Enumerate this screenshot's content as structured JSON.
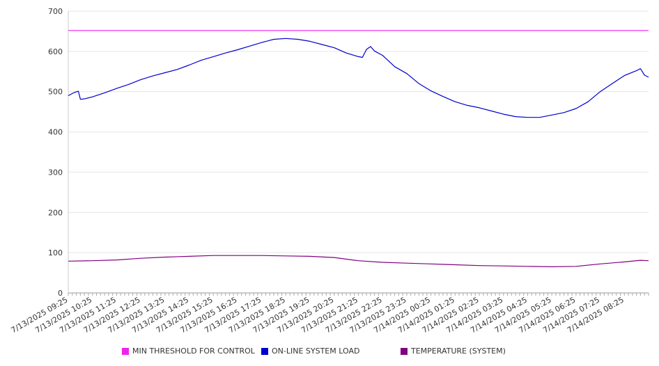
{
  "chart_data": {
    "type": "line",
    "title": "",
    "xlabel": "",
    "ylabel": "",
    "ylim": [
      0,
      700
    ],
    "y_ticks": [
      0,
      100,
      200,
      300,
      400,
      500,
      600,
      700
    ],
    "grid": "horizontal",
    "legend_position": "bottom",
    "x_tick_labels": [
      "7/13/2025 09:25",
      "7/13/2025 10:25",
      "7/13/2025 11:25",
      "7/13/2025 12:25",
      "7/13/2025 13:25",
      "7/13/2025 14:25",
      "7/13/2025 15:25",
      "7/13/2025 16:25",
      "7/13/2025 17:25",
      "7/13/2025 18:25",
      "7/13/2025 19:25",
      "7/13/2025 20:25",
      "7/13/2025 21:25",
      "7/13/2025 22:25",
      "7/13/2025 23:25",
      "7/14/2025 00:25",
      "7/14/2025 01:25",
      "7/14/2025 02:25",
      "7/14/2025 03:25",
      "7/14/2025 04:25",
      "7/14/2025 05:25",
      "7/14/2025 06:25",
      "7/14/2025 07:25",
      "7/14/2025 08:25"
    ],
    "x_range": [
      "7/13/2025 09:25",
      "7/14/2025 09:25"
    ],
    "series": [
      {
        "name": "MIN THRESHOLD FOR CONTROL",
        "color": "#ee22ee",
        "points": [
          [
            "7/13/2025 09:25",
            652
          ],
          [
            "7/14/2025 09:25",
            652
          ]
        ]
      },
      {
        "name": "ON-LINE SYSTEM LOAD",
        "color": "#0000cc",
        "points": [
          [
            "7/13/2025 09:25",
            490
          ],
          [
            "7/13/2025 09:40",
            498
          ],
          [
            "7/13/2025 09:50",
            501
          ],
          [
            "7/13/2025 09:55",
            481
          ],
          [
            "7/13/2025 10:05",
            482
          ],
          [
            "7/13/2025 10:25",
            487
          ],
          [
            "7/13/2025 10:55",
            497
          ],
          [
            "7/13/2025 11:25",
            508
          ],
          [
            "7/13/2025 11:55",
            518
          ],
          [
            "7/13/2025 12:25",
            530
          ],
          [
            "7/13/2025 12:55",
            539
          ],
          [
            "7/13/2025 13:25",
            547
          ],
          [
            "7/13/2025 13:55",
            555
          ],
          [
            "7/13/2025 14:25",
            566
          ],
          [
            "7/13/2025 14:55",
            578
          ],
          [
            "7/13/2025 15:25",
            587
          ],
          [
            "7/13/2025 15:55",
            596
          ],
          [
            "7/13/2025 16:25",
            604
          ],
          [
            "7/13/2025 16:55",
            613
          ],
          [
            "7/13/2025 17:25",
            622
          ],
          [
            "7/13/2025 17:55",
            630
          ],
          [
            "7/13/2025 18:25",
            632
          ],
          [
            "7/13/2025 18:55",
            630
          ],
          [
            "7/13/2025 19:25",
            625
          ],
          [
            "7/13/2025 19:55",
            617
          ],
          [
            "7/13/2025 20:25",
            609
          ],
          [
            "7/13/2025 20:55",
            596
          ],
          [
            "7/13/2025 21:25",
            587
          ],
          [
            "7/13/2025 21:35",
            585
          ],
          [
            "7/13/2025 21:45",
            605
          ],
          [
            "7/13/2025 21:55",
            612
          ],
          [
            "7/13/2025 22:05",
            601
          ],
          [
            "7/13/2025 22:25",
            590
          ],
          [
            "7/13/2025 22:55",
            562
          ],
          [
            "7/13/2025 23:25",
            545
          ],
          [
            "7/13/2025 23:55",
            520
          ],
          [
            "7/14/2025 00:25",
            502
          ],
          [
            "7/14/2025 00:55",
            488
          ],
          [
            "7/14/2025 01:25",
            475
          ],
          [
            "7/14/2025 01:55",
            466
          ],
          [
            "7/14/2025 02:25",
            460
          ],
          [
            "7/14/2025 02:55",
            452
          ],
          [
            "7/14/2025 03:25",
            444
          ],
          [
            "7/14/2025 03:55",
            438
          ],
          [
            "7/14/2025 04:25",
            436
          ],
          [
            "7/14/2025 04:55",
            436
          ],
          [
            "7/14/2025 05:25",
            442
          ],
          [
            "7/14/2025 05:55",
            448
          ],
          [
            "7/14/2025 06:25",
            458
          ],
          [
            "7/14/2025 06:55",
            475
          ],
          [
            "7/14/2025 07:25",
            500
          ],
          [
            "7/14/2025 07:55",
            520
          ],
          [
            "7/14/2025 08:25",
            540
          ],
          [
            "7/14/2025 08:55",
            552
          ],
          [
            "7/14/2025 09:05",
            557
          ],
          [
            "7/14/2025 09:15",
            541
          ],
          [
            "7/14/2025 09:25",
            536
          ]
        ]
      },
      {
        "name": "TEMPERATURE (SYSTEM)",
        "color": "#800080",
        "points": [
          [
            "7/13/2025 09:25",
            79
          ],
          [
            "7/13/2025 10:25",
            80
          ],
          [
            "7/13/2025 11:25",
            82
          ],
          [
            "7/13/2025 12:25",
            86
          ],
          [
            "7/13/2025 13:25",
            89
          ],
          [
            "7/13/2025 14:25",
            91
          ],
          [
            "7/13/2025 15:25",
            93
          ],
          [
            "7/13/2025 16:25",
            93
          ],
          [
            "7/13/2025 17:25",
            93
          ],
          [
            "7/13/2025 18:25",
            92
          ],
          [
            "7/13/2025 19:25",
            91
          ],
          [
            "7/13/2025 20:25",
            88
          ],
          [
            "7/13/2025 21:25",
            80
          ],
          [
            "7/13/2025 22:25",
            76
          ],
          [
            "7/13/2025 23:25",
            74
          ],
          [
            "7/14/2025 00:25",
            72
          ],
          [
            "7/14/2025 01:25",
            70
          ],
          [
            "7/14/2025 02:25",
            68
          ],
          [
            "7/14/2025 03:25",
            67
          ],
          [
            "7/14/2025 04:25",
            66
          ],
          [
            "7/14/2025 05:25",
            65
          ],
          [
            "7/14/2025 06:25",
            66
          ],
          [
            "7/14/2025 07:25",
            72
          ],
          [
            "7/14/2025 08:25",
            77
          ],
          [
            "7/14/2025 09:05",
            81
          ],
          [
            "7/14/2025 09:25",
            80
          ]
        ]
      }
    ]
  }
}
